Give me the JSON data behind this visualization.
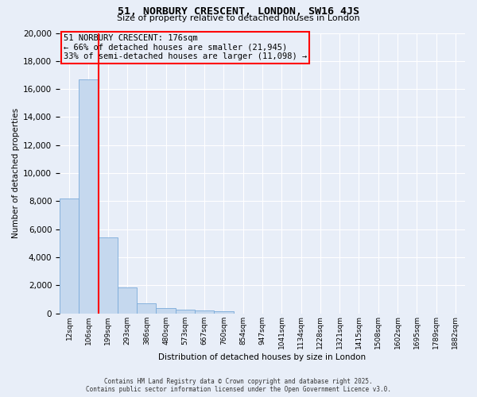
{
  "title": "51, NORBURY CRESCENT, LONDON, SW16 4JS",
  "subtitle": "Size of property relative to detached houses in London",
  "xlabel": "Distribution of detached houses by size in London",
  "ylabel": "Number of detached properties",
  "bar_color": "#c5d8ee",
  "bar_edge_color": "#7aabda",
  "vline_color": "red",
  "vline_x": 1.5,
  "categories": [
    "12sqm",
    "106sqm",
    "199sqm",
    "293sqm",
    "386sqm",
    "480sqm",
    "573sqm",
    "667sqm",
    "760sqm",
    "854sqm",
    "947sqm",
    "1041sqm",
    "1134sqm",
    "1228sqm",
    "1321sqm",
    "1415sqm",
    "1508sqm",
    "1602sqm",
    "1695sqm",
    "1789sqm",
    "1882sqm"
  ],
  "values": [
    8200,
    16700,
    5400,
    1850,
    700,
    350,
    280,
    200,
    160,
    0,
    0,
    0,
    0,
    0,
    0,
    0,
    0,
    0,
    0,
    0,
    0
  ],
  "ylim": [
    0,
    20000
  ],
  "yticks": [
    0,
    2000,
    4000,
    6000,
    8000,
    10000,
    12000,
    14000,
    16000,
    18000,
    20000
  ],
  "annotation_title": "51 NORBURY CRESCENT: 176sqm",
  "annotation_line2": "← 66% of detached houses are smaller (21,945)",
  "annotation_line3": "33% of semi-detached houses are larger (11,098) →",
  "annotation_box_color": "red",
  "background_color": "#e8eef8",
  "grid_color": "white",
  "footer_line1": "Contains HM Land Registry data © Crown copyright and database right 2025.",
  "footer_line2": "Contains public sector information licensed under the Open Government Licence v3.0."
}
